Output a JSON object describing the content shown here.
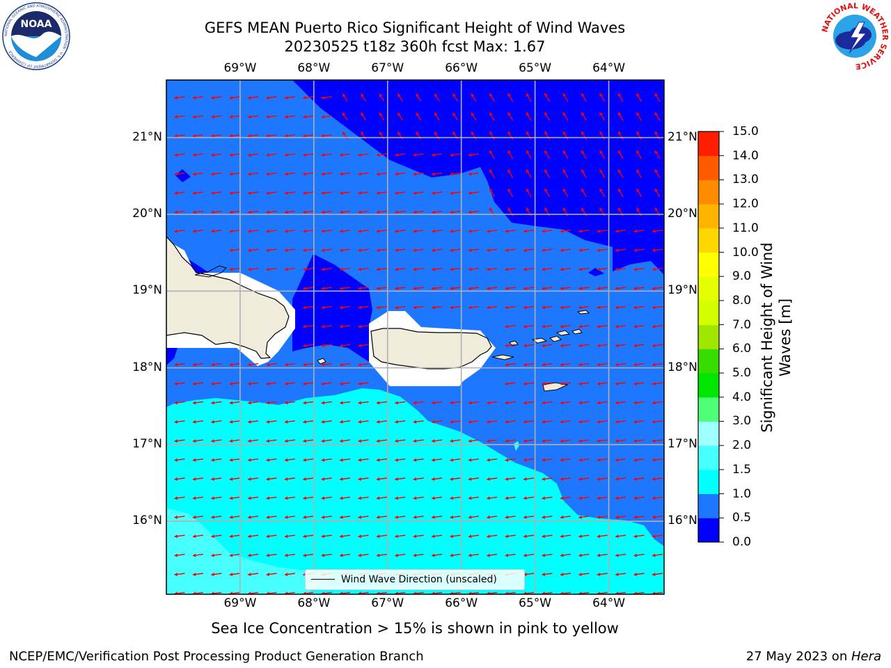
{
  "header": {
    "title_line1": "GEFS MEAN Puerto Rico Significant Height of Wind Waves",
    "title_line2": "20230525 t18z 360h fcst   Max: 1.67"
  },
  "logos": {
    "left": "NOAA",
    "left_ring_text": "NATIONAL OCEANIC AND ATMOSPHERIC ADMINISTRATION · U.S. DEPARTMENT OF COMMERCE",
    "right_ring_text": "NATIONAL WEATHER SERVICE"
  },
  "map": {
    "lon_labels": [
      "69°W",
      "68°W",
      "67°W",
      "66°W",
      "65°W",
      "64°W"
    ],
    "lat_labels": [
      "21°N",
      "20°N",
      "19°N",
      "18°N",
      "17°N",
      "16°N"
    ],
    "lon_values": [
      -69,
      -68,
      -67,
      -66,
      -65,
      -64
    ],
    "lat_values": [
      21,
      20,
      19,
      18,
      17,
      16
    ],
    "extent": {
      "lon_min": -70,
      "lon_max": -63.25,
      "lat_min": 15.05,
      "lat_max": 21.75
    },
    "land_color": "#efecdc",
    "arrow_color": "#ff0000",
    "grid_color": "#b0b0b0"
  },
  "legend": {
    "label": "Wind Wave Direction (unscaled)"
  },
  "colorbar": {
    "label": "Significant Height of Wind Waves [m]",
    "ticks": [
      "15.0",
      "14.0",
      "13.0",
      "12.0",
      "11.0",
      "10.0",
      "9.0",
      "8.0",
      "7.0",
      "6.0",
      "5.0",
      "4.0",
      "3.0",
      "2.0",
      "1.5",
      "1.0",
      "0.5",
      "0.0"
    ],
    "levels": [
      0.0,
      0.5,
      1.0,
      1.5,
      2.0,
      3.0,
      4.0,
      5.0,
      6.0,
      7.0,
      8.0,
      9.0,
      10.0,
      11.0,
      12.0,
      13.0,
      14.0,
      15.0
    ],
    "colors": [
      "#0000ff",
      "#1e78ff",
      "#00ffff",
      "#46ffff",
      "#a0ffff",
      "#50ff78",
      "#00e600",
      "#37dc00",
      "#a0e600",
      "#d2ff00",
      "#e6ff00",
      "#ffff00",
      "#ffd700",
      "#ffb400",
      "#ff8c00",
      "#ff5a00",
      "#ff1e00"
    ]
  },
  "footnote": "Sea Ice Concentration > 15% is shown in pink to yellow",
  "footer": {
    "left": "NCEP/EMC/Verification Post Processing Product Generation Branch",
    "right_prefix": "27 May 2023 on ",
    "right_machine": "Hera"
  }
}
